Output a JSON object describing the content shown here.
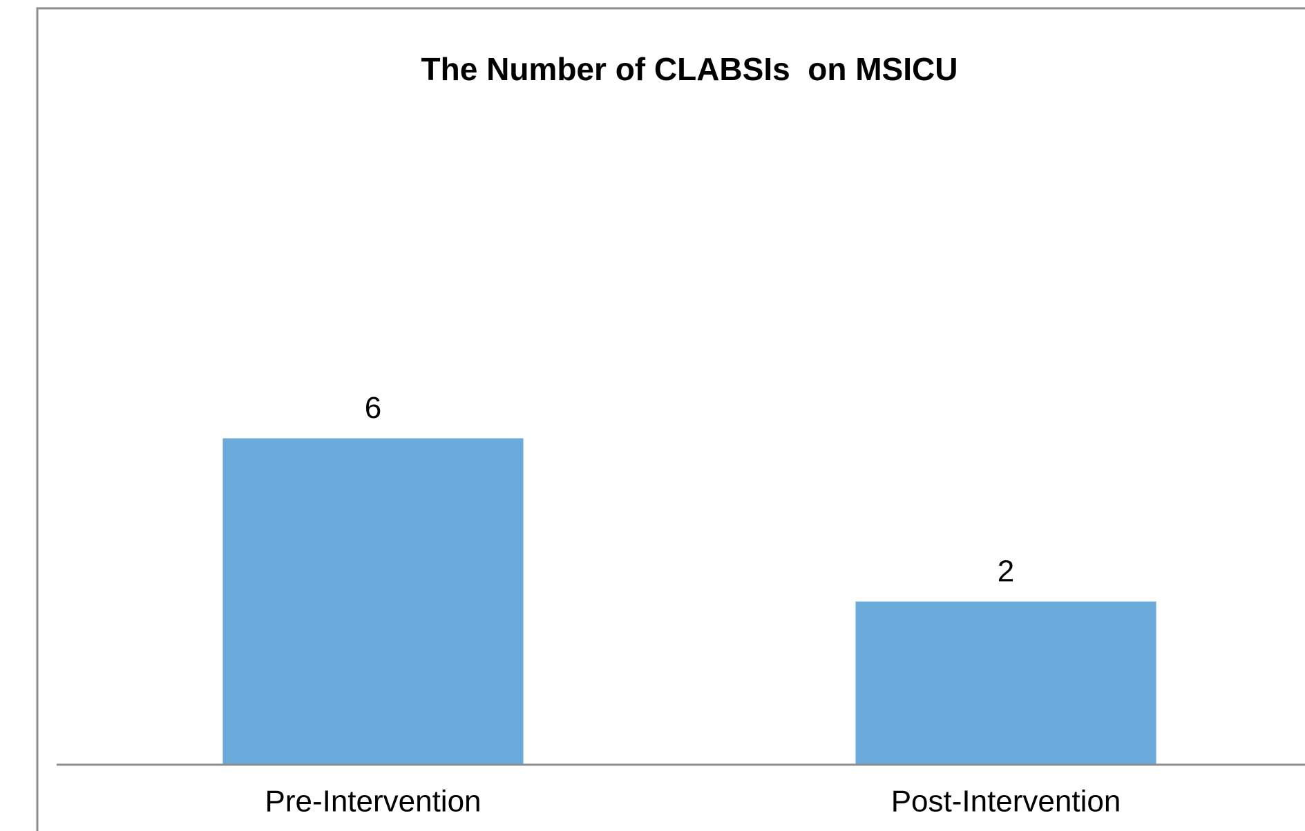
{
  "chart_data": {
    "type": "bar",
    "title": "The Number of CLABSIs  on MSICU",
    "categories": [
      "Pre-Intervention",
      "Post-Intervention"
    ],
    "values": [
      6,
      2
    ],
    "color": "#6aabdc",
    "ylim": [
      -2,
      14
    ]
  }
}
